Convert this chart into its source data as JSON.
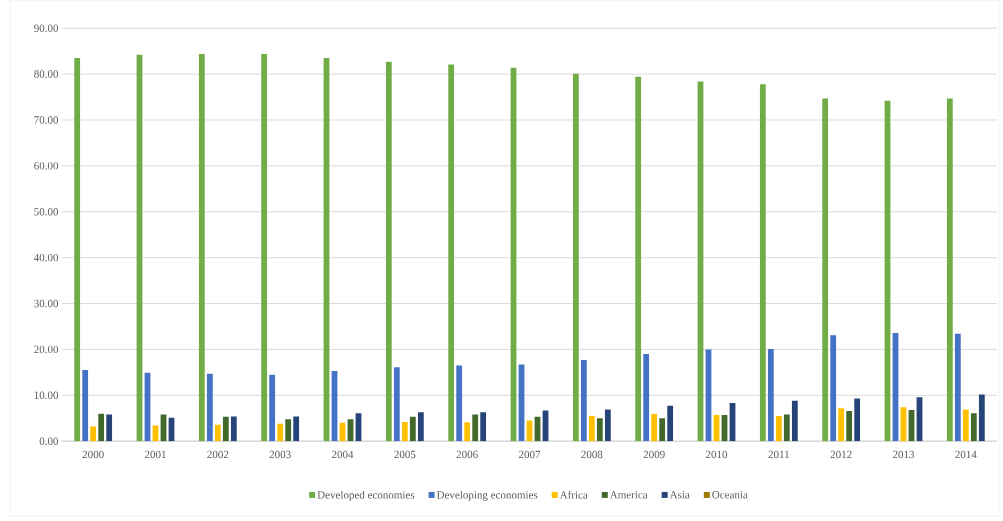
{
  "chart_data": {
    "type": "bar",
    "categories": [
      "2000",
      "2001",
      "2002",
      "2003",
      "2004",
      "2005",
      "2006",
      "2007",
      "2008",
      "2009",
      "2010",
      "2011",
      "2012",
      "2013",
      "2014"
    ],
    "series": [
      {
        "name": "Developed economies",
        "color": "#70ad47",
        "values": [
          83.5,
          84.2,
          84.4,
          84.4,
          83.5,
          82.7,
          82.1,
          81.4,
          80.1,
          79.4,
          78.4,
          77.8,
          74.7,
          74.2,
          74.7
        ]
      },
      {
        "name": "Developing economies",
        "color": "#4472c4",
        "values": [
          15.5,
          14.9,
          14.7,
          14.5,
          15.3,
          16.1,
          16.5,
          16.7,
          17.7,
          19.0,
          20.0,
          20.1,
          23.1,
          23.6,
          23.4
        ]
      },
      {
        "name": "Africa",
        "color": "#ffc000",
        "values": [
          3.2,
          3.4,
          3.6,
          3.8,
          4.0,
          4.2,
          4.1,
          4.5,
          5.5,
          5.9,
          5.7,
          5.5,
          7.2,
          7.4,
          6.9
        ]
      },
      {
        "name": "America",
        "color": "#43682b",
        "values": [
          6.0,
          5.8,
          5.3,
          4.8,
          4.8,
          5.3,
          5.8,
          5.3,
          5.0,
          5.0,
          5.7,
          5.8,
          6.6,
          6.8,
          6.1
        ]
      },
      {
        "name": "Asia",
        "color": "#264478",
        "values": [
          5.8,
          5.1,
          5.4,
          5.4,
          6.1,
          6.3,
          6.3,
          6.7,
          6.9,
          7.7,
          8.3,
          8.8,
          9.3,
          9.6,
          10.2
        ]
      },
      {
        "name": "Oceania",
        "color": "#9e7a00",
        "values": [
          null,
          null,
          null,
          null,
          null,
          null,
          null,
          null,
          null,
          null,
          null,
          null,
          null,
          null,
          null
        ]
      }
    ],
    "ylim": [
      0,
      90
    ],
    "yticks": [
      {
        "value": 0,
        "label": "0.00"
      },
      {
        "value": 10,
        "label": "10.00"
      },
      {
        "value": 20,
        "label": "20.00"
      },
      {
        "value": 30,
        "label": "30.00"
      },
      {
        "value": 40,
        "label": "40.00"
      },
      {
        "value": 50,
        "label": "50.00"
      },
      {
        "value": 60,
        "label": "60.00"
      },
      {
        "value": 70,
        "label": "70.00"
      },
      {
        "value": 80,
        "label": "80.00"
      },
      {
        "value": 90,
        "label": "90.00"
      }
    ],
    "grid": "y",
    "legend": "bottom"
  }
}
